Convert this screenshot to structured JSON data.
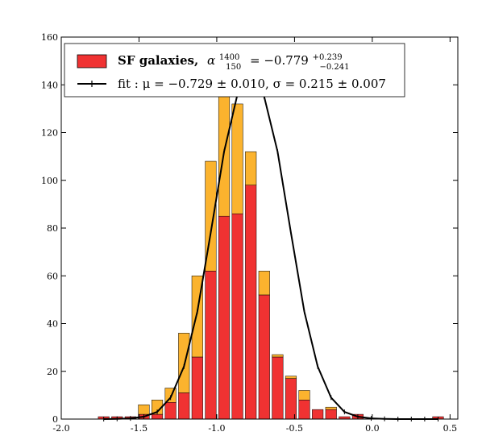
{
  "chart_data": {
    "type": "bar",
    "stacked": true,
    "title": "",
    "xlabel": "",
    "ylabel": "",
    "xlim": [
      -2.0,
      0.55
    ],
    "ylim": [
      0,
      160
    ],
    "xticks": [
      -2.0,
      -1.5,
      -1.0,
      -0.5,
      0.0,
      0.5
    ],
    "xtick_labels": [
      "-2.0",
      "-1.5",
      "-1.0",
      "-0.5",
      "0.0",
      "0.5"
    ],
    "yticks": [
      0,
      20,
      40,
      60,
      80,
      100,
      120,
      140,
      160
    ],
    "ytick_labels": [
      "0",
      "20",
      "40",
      "60",
      "80",
      "100",
      "120",
      "140",
      "160"
    ],
    "grid": false,
    "legend_position": "top",
    "bin_width": 0.086,
    "bin_centers": [
      -1.727,
      -1.641,
      -1.555,
      -1.469,
      -1.383,
      -1.297,
      -1.211,
      -1.125,
      -1.039,
      -0.953,
      -0.867,
      -0.781,
      -0.695,
      -0.609,
      -0.523,
      -0.437,
      -0.351,
      -0.265,
      -0.179,
      -0.093,
      -0.007,
      0.079,
      0.165,
      0.251,
      0.337,
      0.423
    ],
    "series": [
      {
        "name": "SF galaxies",
        "color": "#f03232",
        "values": [
          1,
          1,
          1,
          2,
          2,
          7,
          11,
          26,
          62,
          85,
          86,
          98,
          52,
          26,
          17,
          8,
          4,
          4,
          1,
          2,
          0,
          0,
          0,
          0,
          0,
          1
        ]
      },
      {
        "name": "",
        "color": "#fbb32e",
        "values": [
          0,
          0,
          0,
          4,
          6,
          6,
          25,
          34,
          46,
          56,
          46,
          14,
          10,
          1,
          1,
          4,
          0,
          1,
          0,
          0,
          0,
          0,
          0,
          0,
          0,
          0
        ]
      }
    ],
    "fit": {
      "color": "#000000",
      "mu": -0.729,
      "sigma": 0.215,
      "x": [
        -1.727,
        -1.641,
        -1.555,
        -1.469,
        -1.383,
        -1.297,
        -1.211,
        -1.125,
        -1.039,
        -0.953,
        -0.867,
        -0.781,
        -0.695,
        -0.609,
        -0.523,
        -0.437,
        -0.351,
        -0.265,
        -0.179,
        -0.093,
        -0.007,
        0.079,
        0.165,
        0.251,
        0.337,
        0.423
      ],
      "y": [
        0.0,
        0.1,
        0.3,
        1,
        3,
        9,
        22,
        45,
        78,
        112,
        136,
        143,
        135,
        112,
        78,
        45,
        22,
        9,
        3,
        1,
        0.3,
        0.1,
        0.0,
        0.0,
        0.0,
        0.0
      ]
    },
    "legend": {
      "entry1": {
        "main": "SF galaxies,",
        "sym": "α",
        "sup": "1400",
        "sub": "150",
        "eq": "= −0.779",
        "sup2": "+0.239",
        "sub2": "−0.241"
      },
      "entry2": {
        "text": "fit :  μ = −0.729 ± 0.010,  σ = 0.215 ± 0.007"
      }
    }
  }
}
